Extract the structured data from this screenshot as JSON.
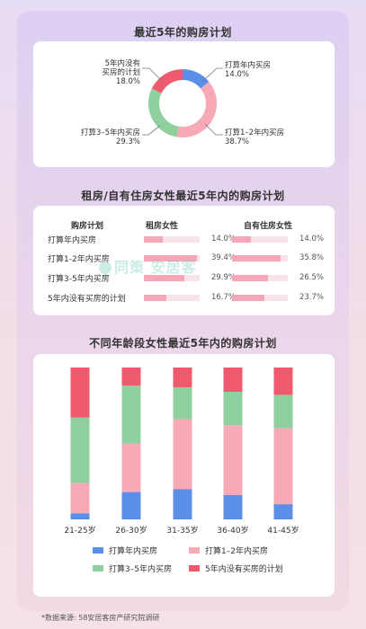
{
  "colors": {
    "blue": "#5b8ee6",
    "pink": "#f7a9b8",
    "green": "#8fd19e",
    "red": "#f05a6e"
  },
  "section1": {
    "title": "最近5年的购房计划"
  },
  "section2": {
    "title": "租房/自有住房女性最近5年内的购房计划",
    "col_plan": "购房计划",
    "col_rent": "租房女性",
    "col_own": "自有住房女性"
  },
  "section3": {
    "title": "不同年龄段女性最近5年内的购房计划"
  },
  "watermark": "同策 安居客",
  "footnote": "*数据来源: 58安居客房产研究院调研",
  "chart_data": [
    {
      "type": "pie",
      "title": "最近5年的购房计划",
      "labels": [
        "打算年内买房",
        "打算1-2年内买房",
        "打算3-5年内买房",
        "5年内没有买房的计划"
      ],
      "display_labels": [
        "打算年内买房",
        "打算1–2年内买房",
        "打算3–5年内买房",
        "5年内没有\n买房的计划"
      ],
      "values": [
        14.0,
        38.7,
        29.3,
        18.0
      ],
      "value_labels": [
        "14.0%",
        "38.7%",
        "29.3%",
        "18.0%"
      ],
      "donut": true
    },
    {
      "type": "bar",
      "title": "租房/自有住房女性最近5年内的购房计划",
      "categories": [
        "打算年内买房",
        "打算1-2年内买房",
        "打算3-5年内买房",
        "5年内没有买房的计划"
      ],
      "series": [
        {
          "name": "租房女性",
          "values": [
            14.0,
            39.4,
            29.9,
            16.7
          ],
          "labels": [
            "14.0%",
            "39.4%",
            "29.9%",
            "16.7%"
          ]
        },
        {
          "name": "自有住房女性",
          "values": [
            14.0,
            35.8,
            26.5,
            23.7
          ],
          "labels": [
            "14.0%",
            "35.8%",
            "26.5%",
            "23.7%"
          ]
        }
      ],
      "xmax": 40
    },
    {
      "type": "bar",
      "stacked": true,
      "title": "不同年龄段女性最近5年内的购房计划",
      "categories": [
        "21-25岁",
        "26-30岁",
        "31-35岁",
        "36-40岁",
        "41-45岁"
      ],
      "series": [
        {
          "name": "打算年内买房",
          "values": [
            4,
            18,
            20,
            16,
            10
          ]
        },
        {
          "name": "打算1-2年内买房",
          "values": [
            20,
            32,
            46,
            46,
            50
          ]
        },
        {
          "name": "打算3-5年内买房",
          "values": [
            43,
            38,
            21,
            22,
            22
          ]
        },
        {
          "name": "5年内没有买房的计划",
          "values": [
            33,
            12,
            13,
            16,
            18
          ]
        }
      ],
      "ylim": [
        0,
        100
      ]
    }
  ]
}
